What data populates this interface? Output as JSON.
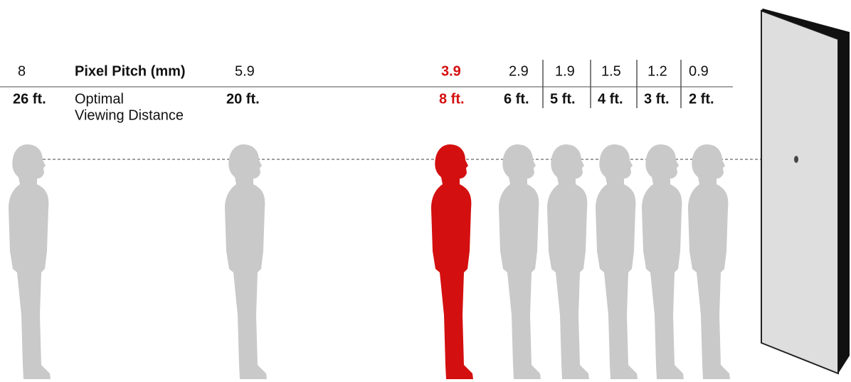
{
  "header": {
    "pitch_label": "Pixel Pitch (mm)",
    "distance_label": [
      "Optimal",
      "Viewing Distance"
    ]
  },
  "columns": [
    {
      "pitch": "8",
      "distance": "26 ft."
    },
    {
      "pitch": "5.9",
      "distance": "20 ft."
    },
    {
      "pitch": "3.9",
      "distance": "8 ft.",
      "color": "#d40f0f"
    },
    {
      "pitch": "2.9",
      "distance": "6 ft."
    },
    {
      "pitch": "1.9",
      "distance": "5 ft."
    },
    {
      "pitch": "1.5",
      "distance": "4 ft."
    },
    {
      "pitch": "1.2",
      "distance": "3 ft."
    },
    {
      "pitch": "0.9",
      "distance": "2 ft."
    }
  ]
}
